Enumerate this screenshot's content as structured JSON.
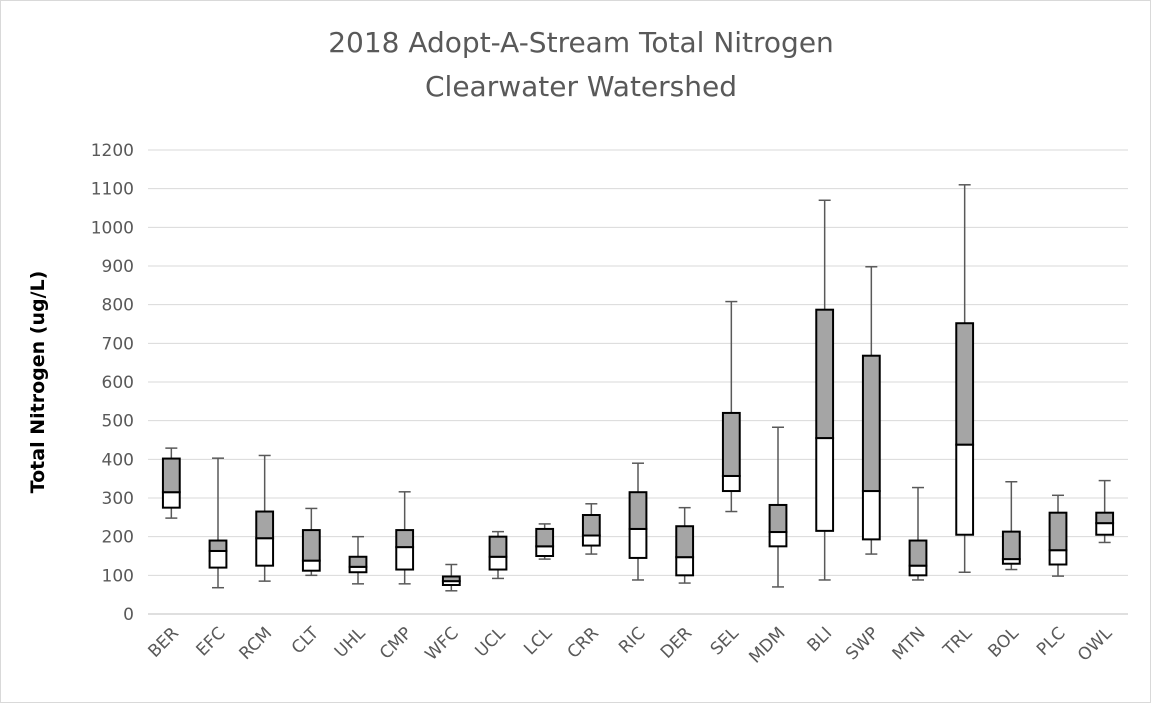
{
  "chart_data": {
    "type": "box",
    "title": "2018 Adopt-A-Stream Total Nitrogen",
    "subtitle": "Clearwater Watershed",
    "y_label": "Total Nitrogen (ug/L)",
    "categories": [
      "BER",
      "EFC",
      "RCM",
      "CLT",
      "UHL",
      "CMP",
      "WFC",
      "UCL",
      "LCL",
      "CRR",
      "RIC",
      "DER",
      "SEL",
      "MDM",
      "BLI",
      "SWP",
      "MTN",
      "TRL",
      "BOL",
      "PLC",
      "OWL"
    ],
    "min": [
      248,
      68,
      85,
      100,
      78,
      78,
      60,
      92,
      142,
      155,
      88,
      80,
      265,
      70,
      88,
      155,
      88,
      108,
      115,
      98,
      185
    ],
    "q1": [
      275,
      120,
      125,
      112,
      108,
      115,
      75,
      115,
      150,
      177,
      145,
      100,
      318,
      175,
      215,
      193,
      100,
      205,
      130,
      128,
      205
    ],
    "median": [
      315,
      163,
      196,
      138,
      122,
      173,
      85,
      148,
      175,
      203,
      220,
      147,
      357,
      212,
      455,
      318,
      125,
      438,
      142,
      165,
      235
    ],
    "q3": [
      402,
      190,
      265,
      217,
      148,
      217,
      97,
      200,
      220,
      256,
      315,
      227,
      520,
      282,
      787,
      668,
      190,
      752,
      213,
      262,
      262
    ],
    "max": [
      429,
      403,
      410,
      273,
      200,
      316,
      128,
      213,
      233,
      285,
      390,
      275,
      808,
      483,
      1070,
      898,
      327,
      1110,
      342,
      307,
      345
    ],
    "upper_color": "#a5a5a5",
    "lower_color": "#ffffff",
    "whisker_color": "#595959",
    "ylim": [
      0,
      1200
    ],
    "yticks": [
      0,
      100,
      200,
      300,
      400,
      500,
      600,
      700,
      800,
      900,
      1000,
      1100,
      1200
    ],
    "grid": true
  }
}
